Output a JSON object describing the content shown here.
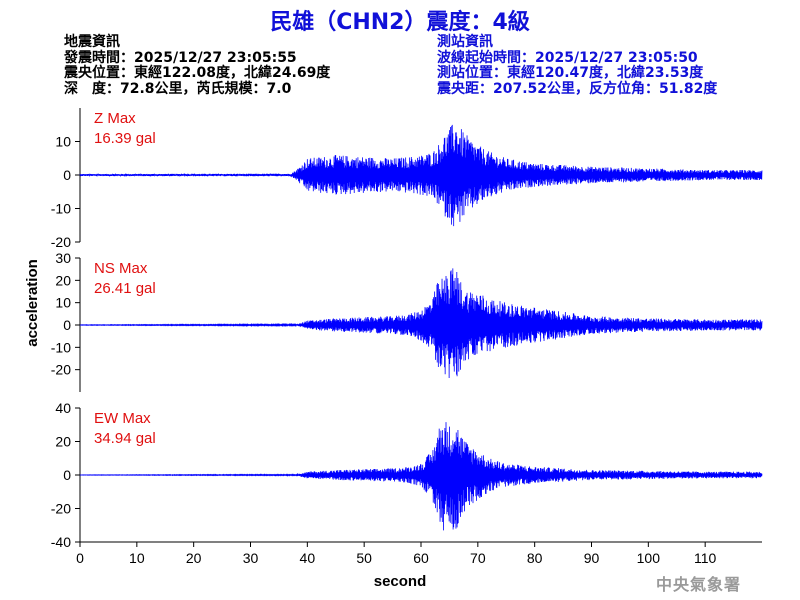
{
  "header": {
    "title": "民雄（CHN2）震度：4級"
  },
  "quake_info": {
    "heading": "地震資訊",
    "time": "發震時間：2025/12/27 23:05:55",
    "location": "震央位置：東經122.08度，北緯24.69度",
    "depth": "深　度：72.8公里，芮氏規模：7.0"
  },
  "station_info": {
    "heading": "測站資訊",
    "wave_start": "波線起始時間：2025/12/27 23:05:50",
    "location": "測站位置：東經120.47度，北緯23.53度",
    "distance": "震央距：207.52公里，反方位角：51.82度"
  },
  "footer": {
    "agency": "中央氣象署"
  },
  "chart_data": {
    "type": "line",
    "xlabel": "second",
    "ylabel": "acceleration",
    "xlim": [
      0,
      120
    ],
    "xticks": [
      0,
      10,
      20,
      30,
      40,
      50,
      60,
      70,
      80,
      90,
      100,
      110
    ],
    "grid": false,
    "line_color": "#0000ff",
    "label_color": "#e01010",
    "note": "Waveform envelope approximated from the plotted traces (amplitude in gal vs time in seconds).",
    "panels": [
      {
        "name": "Z",
        "label": "Z Max",
        "max_text": "16.39 gal",
        "max_value": 16.39,
        "ylim": [
          -20,
          20
        ],
        "yticks": [
          -20,
          -10,
          0,
          10
        ],
        "envelope_t": [
          0,
          37,
          38,
          40,
          45,
          50,
          55,
          58,
          60,
          62,
          63,
          64,
          65,
          66,
          67,
          68,
          70,
          72,
          75,
          80,
          85,
          90,
          100,
          110,
          120
        ],
        "envelope_a": [
          0.3,
          0.4,
          1.5,
          5,
          6,
          5.5,
          5,
          5.5,
          6,
          7,
          9,
          12,
          14,
          16.4,
          14,
          12,
          9,
          7,
          5,
          3.5,
          3,
          2.5,
          2,
          1.5,
          1.5
        ]
      },
      {
        "name": "NS",
        "label": "NS Max",
        "max_text": "26.41 gal",
        "max_value": 26.41,
        "ylim": [
          -30,
          30
        ],
        "yticks": [
          -20,
          -10,
          0,
          10,
          20,
          30
        ],
        "envelope_t": [
          0,
          38,
          40,
          45,
          50,
          55,
          58,
          60,
          62,
          63,
          64,
          65,
          66,
          67,
          68,
          70,
          72,
          75,
          80,
          85,
          90,
          100,
          110,
          120
        ],
        "envelope_a": [
          0.1,
          0.3,
          2,
          3,
          3.5,
          4,
          5,
          7,
          12,
          20,
          22,
          25,
          26.4,
          20,
          16,
          15,
          12,
          10,
          8,
          6,
          4,
          3,
          2.5,
          2.5
        ]
      },
      {
        "name": "EW",
        "label": "EW Max",
        "max_text": "34.94 gal",
        "max_value": 34.94,
        "ylim": [
          -40,
          40
        ],
        "yticks": [
          -40,
          -20,
          0,
          20,
          40
        ],
        "envelope_t": [
          0,
          38,
          40,
          45,
          50,
          55,
          58,
          60,
          62,
          63,
          64,
          65,
          66,
          67,
          68,
          70,
          72,
          75,
          80,
          85,
          90,
          100,
          110,
          120
        ],
        "envelope_a": [
          0.1,
          0.3,
          2,
          3,
          3.5,
          4,
          5,
          7,
          15,
          28,
          34.9,
          30,
          35,
          25,
          20,
          15,
          10,
          7,
          5,
          4,
          3,
          2.5,
          2,
          2
        ]
      }
    ]
  }
}
